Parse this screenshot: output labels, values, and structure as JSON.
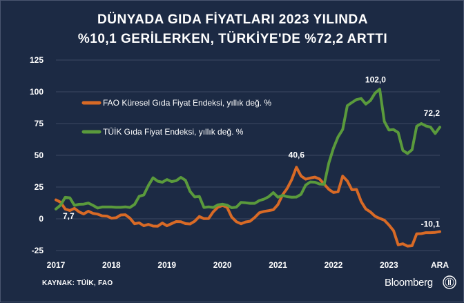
{
  "title_lines": [
    "DÜNYADA GIDA FİYATLARI 2023 YILINDA",
    "%10,1 GERİLERKEN, TÜRKİYE'DE %72,2 ARTTI"
  ],
  "source": "KAYNAK: TÜİK, FAO",
  "brand": "Bloomberg",
  "colors": {
    "background": "#1c2a44",
    "fao": "#d86a26",
    "tuik": "#5a9a3c",
    "grid": "#3b4862"
  },
  "chart_data": {
    "type": "line",
    "x_start": "2017-01",
    "x_end": "2023-12",
    "xticks": [
      "2017",
      "2018",
      "2019",
      "2020",
      "2021",
      "2022",
      "2023",
      "ARA"
    ],
    "yticks": [
      "125",
      "100",
      "75",
      "50",
      "25",
      "0",
      "-25"
    ],
    "ylim": [
      -25,
      125
    ],
    "grid": true,
    "legend_position": "top-left",
    "series": [
      {
        "key": "fao",
        "name": "FAO Küresel Gıda Fiyat Endeksi, yıllık değ. %",
        "color": "#d86a26",
        "values": [
          14.9,
          13.1,
          7.7,
          6.5,
          8.2,
          5.5,
          3.8,
          6.0,
          4.3,
          3.7,
          2.3,
          2.1,
          0.5,
          0.8,
          3.0,
          3.2,
          0.5,
          -3.9,
          -3.2,
          -5.5,
          -4.4,
          -5.7,
          -5.8,
          -3.3,
          -5.5,
          -3.8,
          -2.2,
          -2.3,
          -3.8,
          -4.1,
          -1.9,
          1.8,
          0.1,
          0.2,
          5.5,
          9.1,
          10.5,
          9.0,
          1.3,
          -2.3,
          -3.9,
          -2.5,
          -1.9,
          1.1,
          4.8,
          5.8,
          6.4,
          7.1,
          11.2,
          18.8,
          23.9,
          31.0,
          40.6,
          33.7,
          31.2,
          32.1,
          32.8,
          31.3,
          27.3,
          23.2,
          20.7,
          21.3,
          33.6,
          29.8,
          22.8,
          23.1,
          13.6,
          7.7,
          5.4,
          2.0,
          0.3,
          -1.1,
          -4.9,
          -9.4,
          -20.5,
          -19.7,
          -21.5,
          -21.2,
          -11.8,
          -11.7,
          -10.9,
          -10.9,
          -10.7,
          -10.1
        ]
      },
      {
        "key": "tuik",
        "name": "TÜİK Gıda Fiyat Endeksi, yıllık değ. %",
        "color": "#5a9a3c",
        "values": [
          7.7,
          10.7,
          16.9,
          16.5,
          10.6,
          11.4,
          11.6,
          12.4,
          10.6,
          8.5,
          9.3,
          9.3,
          9.3,
          9.0,
          9.0,
          9.4,
          8.9,
          11.3,
          17.7,
          18.8,
          26.3,
          32.3,
          29.6,
          28.8,
          30.9,
          29.3,
          30.0,
          32.6,
          30.3,
          21.6,
          17.2,
          17.6,
          8.9,
          9.4,
          8.9,
          10.9,
          11.5,
          10.7,
          8.7,
          9.2,
          12.9,
          12.6,
          12.2,
          12.2,
          14.4,
          15.5,
          17.4,
          20.6,
          17.0,
          18.4,
          17.4,
          17.0,
          17.1,
          19.3,
          26.6,
          29.0,
          28.8,
          27.4,
          27.1,
          43.8,
          55.6,
          64.5,
          70.3,
          89.1,
          91.6,
          93.9,
          94.7,
          90.3,
          93.1,
          99.0,
          102.0,
          76.7,
          69.9,
          70.2,
          67.9,
          53.9,
          51.4,
          54.4,
          72.9,
          75.0,
          73.1,
          72.2,
          67.2,
          72.2
        ]
      }
    ],
    "annotations": [
      {
        "text": "7,7",
        "series": "tuik",
        "index": 0
      },
      {
        "text": "40,6",
        "series": "fao",
        "index": 52
      },
      {
        "text": "102,0",
        "series": "tuik",
        "index": 70
      },
      {
        "text": "72,2",
        "series": "tuik",
        "index": 83
      },
      {
        "text": "-10,1",
        "series": "fao",
        "index": 83
      }
    ]
  }
}
